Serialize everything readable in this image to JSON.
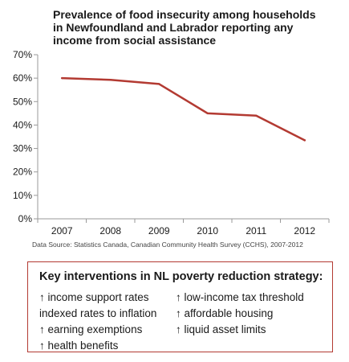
{
  "chart_data": {
    "type": "line",
    "title": "Prevalence of food insecurity among households in Newfoundland and Labrador reporting any income from social assistance",
    "title_lines": [
      "Prevalence of food insecurity among households",
      "in Newfoundland and Labrador reporting any",
      "income from social assistance"
    ],
    "x": [
      "2007",
      "2008",
      "2009",
      "2010",
      "2011",
      "2012"
    ],
    "series": [
      {
        "values": [
          60,
          59.3,
          57.5,
          45,
          44,
          33.5
        ],
        "color": "#b33a32"
      }
    ],
    "ylim": [
      0,
      70
    ],
    "y_ticks": [
      {
        "value": 0,
        "label": "0%"
      },
      {
        "value": 10,
        "label": "10%"
      },
      {
        "value": 20,
        "label": "20%"
      },
      {
        "value": 30,
        "label": "30%"
      },
      {
        "value": 40,
        "label": "40%"
      },
      {
        "value": 50,
        "label": "50%"
      },
      {
        "value": 60,
        "label": "60%"
      },
      {
        "value": 70,
        "label": "70%"
      }
    ],
    "grid": false,
    "source": "Data Source: Statistics Canada, Canadian Community Health Survey (CCHS), 2007-2012"
  },
  "interventions": {
    "title": "Key interventions in NL poverty reduction strategy:",
    "items": [
      "↑ income support rates",
      "indexed rates to inflation",
      "↑ earning exemptions",
      "↑ health benefits",
      "↑ low-income tax threshold",
      "↑ affordable housing",
      "↑ liquid asset limits"
    ],
    "border_color": "#b33a32"
  }
}
